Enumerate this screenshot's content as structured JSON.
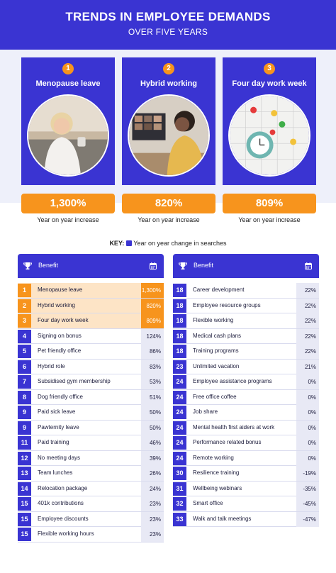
{
  "header": {
    "title": "TRENDS IN EMPLOYEE DEMANDS",
    "subtitle": "OVER FIVE YEARS"
  },
  "highlights": [
    {
      "rank": "1",
      "label": "Menopause leave",
      "value": "1,300%",
      "caption": "Year on year increase",
      "image": "woman-on-sofa-photo"
    },
    {
      "rank": "2",
      "label": "Hybrid working",
      "value": "820%",
      "caption": "Year on year increase",
      "image": "video-call-photo"
    },
    {
      "rank": "3",
      "label": "Four day work week",
      "value": "809%",
      "caption": "Year on year increase",
      "image": "calendar-alarm-clock-photo"
    }
  ],
  "key": {
    "label": "KEY:",
    "text": "Year on year change in searches",
    "icon": "calendar-icon"
  },
  "table_header": {
    "benefit_label": "Benefit",
    "trophy_icon": "trophy-icon",
    "calendar_icon": "calendar-icon"
  },
  "left_table": [
    {
      "rank": "1",
      "benefit": "Menopause leave",
      "change": "1,300%"
    },
    {
      "rank": "2",
      "benefit": "Hybrid working",
      "change": "820%"
    },
    {
      "rank": "3",
      "benefit": "Four day work week",
      "change": "809%"
    },
    {
      "rank": "4",
      "benefit": "Signing on bonus",
      "change": "124%"
    },
    {
      "rank": "5",
      "benefit": "Pet friendly office",
      "change": "86%"
    },
    {
      "rank": "6",
      "benefit": "Hybrid role",
      "change": "83%"
    },
    {
      "rank": "7",
      "benefit": "Subsidised gym membership",
      "change": "53%"
    },
    {
      "rank": "8",
      "benefit": "Dog friendly office",
      "change": "51%"
    },
    {
      "rank": "9",
      "benefit": "Paid sick leave",
      "change": "50%"
    },
    {
      "rank": "9",
      "benefit": "Pawternity leave",
      "change": "50%"
    },
    {
      "rank": "11",
      "benefit": "Paid training",
      "change": "46%"
    },
    {
      "rank": "12",
      "benefit": "No meeting days",
      "change": "39%"
    },
    {
      "rank": "13",
      "benefit": "Team lunches",
      "change": "26%"
    },
    {
      "rank": "14",
      "benefit": "Relocation package",
      "change": "24%"
    },
    {
      "rank": "15",
      "benefit": "401k contributions",
      "change": "23%"
    },
    {
      "rank": "15",
      "benefit": "Employee discounts",
      "change": "23%"
    },
    {
      "rank": "15",
      "benefit": "Flexible working hours",
      "change": "23%"
    }
  ],
  "right_table": [
    {
      "rank": "18",
      "benefit": "Career development",
      "change": "22%"
    },
    {
      "rank": "18",
      "benefit": "Employee resource groups",
      "change": "22%"
    },
    {
      "rank": "18",
      "benefit": "Flexible working",
      "change": "22%"
    },
    {
      "rank": "18",
      "benefit": "Medical cash plans",
      "change": "22%"
    },
    {
      "rank": "18",
      "benefit": "Training programs",
      "change": "22%"
    },
    {
      "rank": "23",
      "benefit": "Unlimited vacation",
      "change": "21%"
    },
    {
      "rank": "24",
      "benefit": "Employee assistance programs",
      "change": "0%"
    },
    {
      "rank": "24",
      "benefit": "Free office coffee",
      "change": "0%"
    },
    {
      "rank": "24",
      "benefit": "Job share",
      "change": "0%"
    },
    {
      "rank": "24",
      "benefit": "Mental health first aiders at work",
      "change": "0%"
    },
    {
      "rank": "24",
      "benefit": "Performance related bonus",
      "change": "0%"
    },
    {
      "rank": "24",
      "benefit": "Remote working",
      "change": "0%"
    },
    {
      "rank": "30",
      "benefit": "Resilience training",
      "change": "-19%"
    },
    {
      "rank": "31",
      "benefit": "Wellbeing webinars",
      "change": "-35%"
    },
    {
      "rank": "32",
      "benefit": "Smart office",
      "change": "-45%"
    },
    {
      "rank": "33",
      "benefit": "Walk and talk meetings",
      "change": "-47%"
    }
  ],
  "colors": {
    "brand_blue": "#3a34d2",
    "accent_orange": "#f7941d",
    "highlight_row": "#fde4c6",
    "value_cell": "#e8e9f5"
  }
}
